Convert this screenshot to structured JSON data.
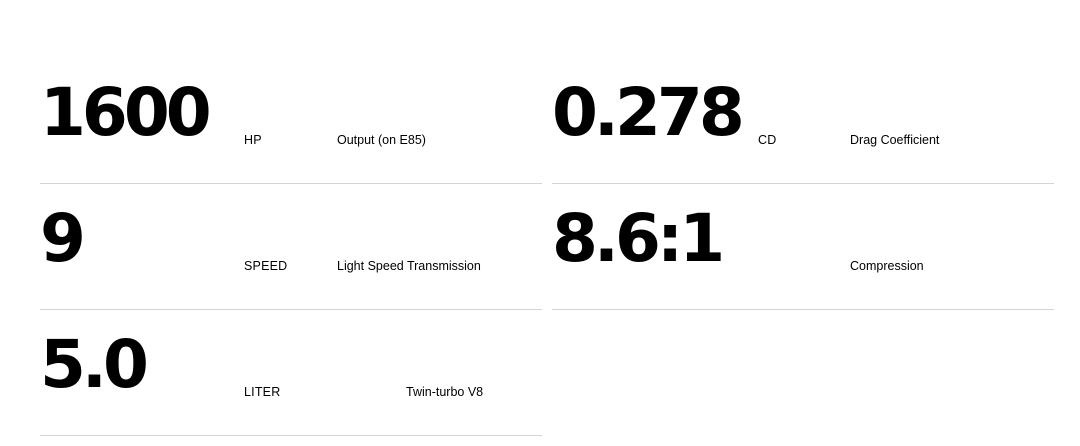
{
  "specs": [
    {
      "value": "1600",
      "unit": "HP",
      "description": "Output (on E85)"
    },
    {
      "value": "0.278",
      "unit": "CD",
      "description": "Drag Coefficient"
    },
    {
      "value": "9",
      "unit": "SPEED",
      "description": "Light Speed Transmission"
    },
    {
      "value": "8.6:1",
      "unit": "",
      "description": "Compression"
    },
    {
      "value": "5.0",
      "unit": "LITER",
      "description": "Twin-turbo V8"
    }
  ]
}
